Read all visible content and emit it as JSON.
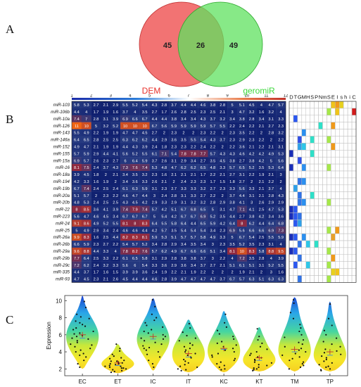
{
  "panels": {
    "a": "A",
    "b": "B",
    "c": "C"
  },
  "venn": {
    "left_label": "DEM",
    "right_label": "geromiR",
    "left_only": "45",
    "overlap": "26",
    "right_only": "49",
    "left_color": "#f05a5a",
    "right_color": "#5fe25f",
    "left_label_color": "#e8302a",
    "right_label_color": "#3ad63a"
  },
  "heatmap": {
    "col_ticks": [
      "1",
      "2",
      "3",
      "4",
      "5",
      "6",
      "7",
      "8",
      "9",
      "10",
      "11",
      "12"
    ],
    "rows": [
      {
        "name": "miR-103",
        "values": [
          5.8,
          5.3,
          2.7,
          2.1,
          2.9,
          5.5,
          5.2,
          5.4,
          4.3,
          2.8,
          3.7,
          4.4,
          4.4,
          4.6,
          3.8,
          2.8,
          5.0,
          5.1,
          4.5,
          4.0,
          4.7,
          5.7
        ]
      },
      {
        "name": "miR-106b",
        "values": [
          4.4,
          4.0,
          1.7,
          1.9,
          1.6,
          3.7,
          4.0,
          3.5,
          2.7,
          1.7,
          2.6,
          2.8,
          2.5,
          2.3,
          2.5,
          2.1,
          3.0,
          4.7,
          3.2,
          1.6,
          3.2,
          4.0
        ]
      },
      {
        "name": "miR-10a",
        "values": [
          7.4,
          7.0,
          2.8,
          3.1,
          3.9,
          6.9,
          6.6,
          6.7,
          4.4,
          4.4,
          3.8,
          3.4,
          3.4,
          4.3,
          3.7,
          3.2,
          3.4,
          3.8,
          2.8,
          3.4,
          3.1,
          3.3
        ]
      },
      {
        "name": "miR-126",
        "values": [
          11,
          10,
          5.0,
          3.2,
          5.2,
          10,
          10,
          10,
          6.7,
          5.6,
          5.9,
          5.9,
          5.9,
          5.9,
          5.7,
          5.5,
          2.2,
          2.4,
          2.2,
          2.1,
          2.7,
          2.3
        ]
      },
      {
        "name": "miR-143",
        "values": [
          5.5,
          4.9,
          2.2,
          1.9,
          1.9,
          4.7,
          4.7,
          4.5,
          2.7,
          2.0,
          2.3,
          2.0,
          2.0,
          2.3,
          2.2,
          2.0,
          2.3,
          3.5,
          2.2,
          2.0,
          2.8,
          3.2
        ]
      },
      {
        "name": "miR-146a",
        "values": [
          6.4,
          6.5,
          2.8,
          2.5,
          2.5,
          6.3,
          6.2,
          6.2,
          4.4,
          2.9,
          3.6,
          3.5,
          5.5,
          5.4,
          4.3,
          3.7,
          2.3,
          2.9,
          2.3,
          2.2,
          2.0,
          2.2
        ]
      },
      {
        "name": "miR-152",
        "values": [
          4.9,
          4.7,
          2.1,
          1.9,
          1.9,
          4.4,
          4.3,
          3.9,
          2.4,
          1.8,
          2.3,
          2.3,
          2.2,
          2.4,
          2.2,
          2.0,
          2.2,
          3.6,
          2.1,
          2.2,
          2.1,
          3.1
        ]
      },
      {
        "name": "miR-155",
        "values": [
          5.7,
          5.9,
          2.9,
          4.4,
          4.1,
          5.6,
          5.2,
          5.5,
          6.1,
          7.1,
          5.4,
          7.8,
          7.8,
          7.7,
          5.7,
          4.3,
          4.3,
          4.6,
          4.2,
          4.2,
          4.9,
          5.3
        ]
      },
      {
        "name": "miR-15a",
        "values": [
          6.9,
          5.7,
          2.6,
          2.3,
          2.7,
          6.0,
          6.4,
          5.9,
          3.7,
          2.6,
          3.1,
          2.9,
          3.4,
          2.7,
          3.5,
          4.5,
          3.8,
          2.7,
          3.8,
          4.2,
          5.0,
          5.6
        ]
      },
      {
        "name": "miR-16",
        "values": [
          8.1,
          7.5,
          2.4,
          3.7,
          4.3,
          7.3,
          7.6,
          7.4,
          5.3,
          4.8,
          4.7,
          6.2,
          6.2,
          6.5,
          4.8,
          3.3,
          5.7,
          6.5,
          5.2,
          3.5,
          5.3,
          6.4
        ]
      },
      {
        "name": "miR-18a",
        "values": [
          3.9,
          4.5,
          1.8,
          2.0,
          2.1,
          3.4,
          3.5,
          3.2,
          2.3,
          1.6,
          2.1,
          2.1,
          2.1,
          1.7,
          2.2,
          2.1,
          2.7,
          3.1,
          2.2,
          1.9,
          2.1,
          3.0
        ]
      },
      {
        "name": "miR-194",
        "values": [
          4.2,
          3.3,
          1.6,
          1.9,
          2.0,
          3.4,
          3.6,
          3.3,
          2.6,
          2.1,
          2.0,
          2.4,
          2.3,
          2.3,
          1.7,
          1.5,
          1.8,
          2.7,
          2.0,
          2.1,
          2.2,
          2.0
        ]
      },
      {
        "name": "miR-19b",
        "values": [
          6.7,
          7.4,
          2.4,
          2.5,
          2.4,
          6.1,
          6.3,
          5.9,
          3.1,
          2.3,
          2.7,
          3.3,
          3.3,
          3.2,
          2.7,
          2.3,
          3.3,
          5.6,
          3.3,
          2.1,
          3.7,
          4.0
        ]
      },
      {
        "name": "miR-20a",
        "values": [
          5.1,
          5.7,
          2.0,
          2.3,
          2.2,
          4.6,
          4.7,
          4.4,
          3.0,
          2.4,
          2.8,
          3.1,
          3.3,
          2.7,
          2.2,
          2.0,
          3.7,
          4.4,
          3.1,
          2.1,
          2.8,
          4.3
        ]
      },
      {
        "name": "miR-20b",
        "values": [
          4.8,
          5.3,
          2.4,
          2.5,
          2.5,
          4.3,
          4.5,
          4.2,
          2.9,
          3.3,
          2.9,
          3.1,
          3.2,
          3.2,
          2.8,
          2.9,
          3.8,
          4.1,
          3.0,
          2.6,
          2.9,
          2.9
        ]
      },
      {
        "name": "miR-22",
        "values": [
          8.0,
          8.5,
          3.6,
          4.1,
          3.9,
          7.4,
          7.9,
          7.4,
          5.7,
          4.2,
          5.1,
          6.7,
          6.8,
          6.5,
          5.0,
          3.1,
          4.7,
          7.1,
          4.1,
          2.5,
          4.7,
          5.3
        ]
      },
      {
        "name": "miR-223",
        "values": [
          5.6,
          4.7,
          4.6,
          4.5,
          3.4,
          6.7,
          6.7,
          6.7,
          5.0,
          5.4,
          4.2,
          6.7,
          6.7,
          6.9,
          5.2,
          3.5,
          4.4,
          2.7,
          3.8,
          4.2,
          3.4,
          3.6
        ]
      },
      {
        "name": "miR-24",
        "values": [
          9.1,
          8.6,
          4.9,
          5.2,
          5.5,
          8.1,
          8.0,
          8.3,
          6.4,
          5.5,
          5.8,
          6.4,
          4.4,
          6.5,
          5.9,
          4.2,
          6.4,
          8.0,
          6.2,
          4.4,
          6.4,
          6.8
        ]
      },
      {
        "name": "miR-25",
        "values": [
          5.0,
          4.9,
          2.9,
          3.4,
          2.4,
          4.6,
          4.6,
          4.4,
          4.2,
          5.7,
          3.5,
          5.4,
          5.4,
          5.4,
          3.4,
          2.3,
          6.9,
          5.6,
          6.6,
          6.6,
          6.9,
          7.3
        ]
      },
      {
        "name": "miR-26a",
        "values": [
          9.9,
          8.3,
          1.6,
          2.5,
          4.4,
          8.2,
          8.3,
          8.1,
          5.9,
          5.3,
          5.1,
          5.7,
          5.7,
          5.8,
          4.9,
          3.3,
          5.0,
          6.7,
          5.4,
          2.5,
          5.5,
          5.9
        ]
      },
      {
        "name": "miR-26b",
        "values": [
          6.6,
          5.9,
          2.3,
          2.7,
          2.2,
          5.4,
          5.7,
          5.2,
          3.4,
          2.8,
          2.9,
          3.4,
          3.5,
          3.4,
          3.0,
          2.3,
          3.5,
          5.2,
          3.5,
          2.3,
          3.1,
          4.0
        ]
      },
      {
        "name": "miR-29a",
        "values": [
          9.6,
          8.8,
          4.4,
          3.3,
          4.0,
          7.8,
          8.2,
          7.6,
          5.7,
          6.2,
          4.9,
          6.7,
          6.6,
          6.6,
          5.1,
          3.4,
          8.1,
          10,
          8.3,
          5.8,
          8.8,
          9.5
        ]
      },
      {
        "name": "miR-29b",
        "values": [
          7.7,
          6.4,
          2.5,
          3.3,
          2.2,
          6.1,
          6.5,
          5.8,
          3.1,
          2.9,
          2.8,
          3.8,
          3.8,
          3.7,
          3.0,
          2.2,
          4.0,
          7.2,
          3.5,
          2.8,
          4.0,
          3.9
        ]
      },
      {
        "name": "miR-29c",
        "values": [
          7.2,
          6.2,
          2.4,
          3.2,
          3.3,
          5.6,
          6.0,
          5.4,
          3.3,
          3.6,
          2.9,
          3.6,
          3.4,
          3.7,
          2.7,
          2.1,
          5.1,
          6.1,
          5.1,
          3.1,
          5.2,
          5.5
        ]
      },
      {
        "name": "miR-335",
        "values": [
          4.4,
          3.7,
          1.7,
          1.6,
          1.5,
          3.9,
          3.9,
          3.6,
          2.4,
          1.9,
          2.2,
          2.1,
          1.9,
          2.2,
          2.0,
          2.0,
          2.0,
          1.9,
          2.1,
          2.0,
          3.0,
          1.6
        ]
      },
      {
        "name": "miR-93",
        "values": [
          4.7,
          4.5,
          2.3,
          2.1,
          2.6,
          4.5,
          4.4,
          4.4,
          4.6,
          2.8,
          3.9,
          4.7,
          4.7,
          4.7,
          4.7,
          3.7,
          6.7,
          5.7,
          6.3,
          5.1,
          6.3,
          6.3
        ]
      }
    ],
    "annotation_headers": [
      "D",
      "T",
      "G",
      "M",
      "H",
      "S",
      "P",
      "N",
      "m",
      "S",
      "E",
      "I",
      "s",
      "h",
      "i",
      "C"
    ],
    "annotation_marks": [
      [
        [
          10,
          "#f0c419"
        ],
        [
          11,
          "#f09a1a"
        ],
        [
          12,
          "#e8d11e"
        ]
      ],
      [
        [
          9,
          "#a6e84a"
        ],
        [
          11,
          "#f0c419"
        ],
        [
          15,
          "#d41b1b"
        ]
      ],
      [
        [
          1,
          "#2a57f0"
        ]
      ],
      [
        [
          7,
          "#2ee0c8"
        ],
        [
          10,
          "#f09a1a"
        ]
      ],
      [
        [
          3,
          "#2a8ff0"
        ]
      ],
      [
        [
          2,
          "#2f4ee6"
        ],
        [
          5,
          "#2ee0c8"
        ],
        [
          9,
          "#a6e84a"
        ]
      ],
      [
        [
          2,
          "#2ea0e8"
        ],
        [
          3,
          "#2ec6e8"
        ],
        [
          10,
          "#f09a1a"
        ]
      ],
      [
        [
          0,
          "#1a2fb8"
        ],
        [
          5,
          "#2ee0c8"
        ]
      ],
      [
        [
          2,
          "#2f4ee6"
        ]
      ],
      [
        [
          0,
          "#1a2fb8"
        ],
        [
          3,
          "#2a8ff0"
        ],
        [
          9,
          "#a6e84a"
        ]
      ],
      [],
      [
        [
          2,
          "#2f72e6"
        ],
        [
          3,
          "#2a8ff0"
        ]
      ],
      [
        [
          1,
          "#2ea0e8"
        ]
      ],
      [
        [
          2,
          "#2f72e6"
        ],
        [
          5,
          "#2ee0c8"
        ]
      ],
      [
        [
          2,
          "#2f72e6"
        ],
        [
          3,
          "#2a8ff0"
        ],
        [
          9,
          "#a6e84a"
        ]
      ],
      [
        [
          0,
          "#1a2fb8"
        ],
        [
          1,
          "#2a57f0"
        ]
      ],
      [
        [
          0,
          "#1a2fb8"
        ],
        [
          1,
          "#2a57f0"
        ],
        [
          2,
          "#2f72e6"
        ]
      ],
      [
        [
          1,
          "#2a57f0"
        ],
        [
          2,
          "#2ea0e8"
        ]
      ],
      [
        [
          9,
          "#a6e84a"
        ],
        [
          11,
          "#f09a1a"
        ]
      ],
      [
        [
          0,
          "#1a2fb8"
        ],
        [
          1,
          "#2a57f0"
        ],
        [
          3,
          "#2a8ff0"
        ],
        [
          10,
          "#e8a12a"
        ]
      ],
      [
        [
          2,
          "#2f72e6"
        ],
        [
          4,
          "#2ec6e8"
        ],
        [
          6,
          "#2ee0c8"
        ]
      ],
      [
        [
          0,
          "#1a2fb8"
        ],
        [
          1,
          "#2a57f0"
        ],
        [
          9,
          "#a6e84a"
        ]
      ],
      [
        [
          2,
          "#2f72e6"
        ],
        [
          10,
          "#f09a1a"
        ]
      ],
      [
        [
          1,
          "#2a57f0"
        ],
        [
          4,
          "#2ec6e8"
        ],
        [
          9,
          "#a6e84a"
        ]
      ],
      [
        [
          10,
          "#e8d11e"
        ],
        [
          11,
          "#f0c419"
        ]
      ],
      [
        [
          2,
          "#2f72e6"
        ],
        [
          9,
          "#a6e84a"
        ]
      ]
    ]
  },
  "chart_data": {
    "type": "violin",
    "title": "",
    "xlabel": "",
    "ylabel": "Expression",
    "ylim": [
      1.2,
      10.6
    ],
    "yticks": [
      2,
      4,
      6,
      8,
      10
    ],
    "categories": [
      "EC",
      "ET",
      "IC",
      "IT",
      "KC",
      "KT",
      "TM",
      "TP"
    ],
    "series": [
      {
        "category": "EC",
        "min": 2.0,
        "max": 10.6,
        "mean": 6.0,
        "median": 5.6,
        "points": [
          9.9,
          9.2,
          8.4,
          8.1,
          7.9,
          7.6,
          7.4,
          7.2,
          7.0,
          6.8,
          6.6,
          6.4,
          6.2,
          6.1,
          5.9,
          5.8,
          5.6,
          5.5,
          5.3,
          5.1,
          4.9,
          4.8,
          4.6,
          4.4,
          4.2,
          4.0,
          3.8,
          3.6,
          3.4,
          3.0,
          2.6,
          2.2
        ]
      },
      {
        "category": "ET",
        "min": 1.5,
        "max": 4.9,
        "mean": 2.7,
        "median": 2.4,
        "points": [
          4.9,
          4.4,
          4.1,
          3.7,
          3.5,
          3.2,
          3.0,
          2.9,
          2.8,
          2.7,
          2.6,
          2.5,
          2.4,
          2.3,
          2.2,
          2.1,
          2.0,
          1.9,
          1.8,
          1.7,
          1.6,
          2.6,
          2.9,
          2.3,
          2.1,
          3.3
        ]
      },
      {
        "category": "IC",
        "min": 1.8,
        "max": 10.3,
        "mean": 5.8,
        "median": 5.5,
        "points": [
          10.1,
          9.3,
          8.4,
          8.0,
          7.7,
          7.4,
          7.1,
          6.9,
          6.6,
          6.4,
          6.2,
          6.0,
          5.8,
          5.6,
          5.5,
          5.3,
          5.1,
          4.9,
          4.7,
          4.5,
          4.4,
          4.2,
          4.0,
          3.7,
          3.4,
          3.0,
          2.6,
          2.2
        ]
      },
      {
        "category": "IT",
        "min": 1.6,
        "max": 7.8,
        "mean": 3.8,
        "median": 3.4,
        "points": [
          7.3,
          6.8,
          6.3,
          5.9,
          5.6,
          5.3,
          5.0,
          4.8,
          4.6,
          4.4,
          4.2,
          4.0,
          3.8,
          3.6,
          3.4,
          3.3,
          3.1,
          2.9,
          2.7,
          2.5,
          2.3,
          2.2,
          2.0,
          1.9,
          1.8
        ]
      },
      {
        "category": "KC",
        "min": 1.6,
        "max": 8.8,
        "mean": 4.4,
        "median": 4.3,
        "points": [
          8.4,
          7.4,
          6.9,
          6.5,
          6.1,
          5.8,
          5.5,
          5.2,
          5.0,
          4.8,
          4.6,
          4.4,
          4.2,
          4.0,
          3.8,
          3.6,
          3.4,
          3.2,
          3.0,
          2.8,
          2.6,
          2.4,
          2.2,
          2.0,
          1.9
        ]
      },
      {
        "category": "KT",
        "min": 1.7,
        "max": 6.9,
        "mean": 3.3,
        "median": 3.0,
        "points": [
          6.7,
          5.8,
          5.4,
          5.0,
          4.6,
          4.3,
          4.0,
          3.8,
          3.6,
          3.4,
          3.3,
          3.1,
          3.0,
          2.8,
          2.7,
          2.5,
          2.4,
          2.2,
          2.1,
          2.0,
          1.9,
          1.8
        ]
      },
      {
        "category": "TM",
        "min": 1.7,
        "max": 10.4,
        "mean": 4.3,
        "median": 4.0,
        "points": [
          10.1,
          9.7,
          8.6,
          7.9,
          7.2,
          6.8,
          6.4,
          6.0,
          5.7,
          5.4,
          5.1,
          4.9,
          4.6,
          4.4,
          4.2,
          4.0,
          3.8,
          3.6,
          3.4,
          3.2,
          3.0,
          2.8,
          2.6,
          2.4,
          2.2,
          2.0
        ]
      },
      {
        "category": "TP",
        "min": 1.7,
        "max": 9.9,
        "mean": 4.0,
        "median": 3.6,
        "points": [
          9.6,
          7.9,
          7.1,
          6.5,
          6.0,
          5.6,
          5.2,
          4.9,
          4.6,
          4.3,
          4.1,
          3.9,
          3.7,
          3.5,
          3.3,
          3.1,
          2.9,
          2.7,
          2.5,
          2.3,
          2.2,
          2.0,
          1.9,
          1.8
        ]
      }
    ]
  }
}
